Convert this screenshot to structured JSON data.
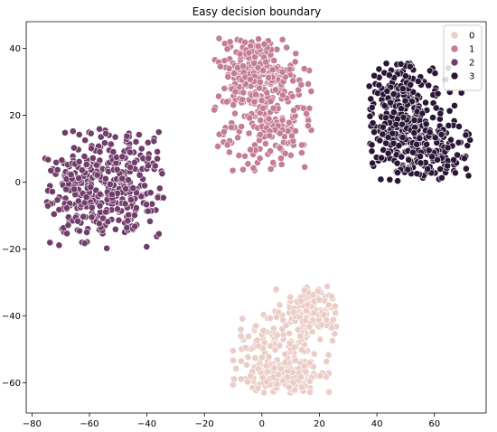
{
  "chart_data": {
    "type": "scatter",
    "title": "Easy decision boundary",
    "xlabel": "",
    "ylabel": "",
    "xlim": [
      -82,
      78
    ],
    "ylim": [
      -69,
      48
    ],
    "xticks": [
      -80,
      -60,
      -40,
      -20,
      0,
      20,
      40,
      60
    ],
    "yticks": [
      -60,
      -40,
      -20,
      0,
      20,
      40
    ],
    "grid": false,
    "legend": "top-right",
    "series": [
      {
        "name": "0",
        "color": "#ebcdc7",
        "clusters": [
          {
            "center": [
              5,
              -50
            ],
            "spread": [
              10,
              7
            ]
          },
          {
            "center": [
              17,
              -39
            ],
            "spread": [
              5,
              4
            ]
          },
          {
            "center": [
              8,
              -58
            ],
            "spread": [
              7,
              3
            ]
          }
        ],
        "x_range": [
          -12,
          27
        ],
        "y_range": [
          -63,
          -30
        ],
        "count": 420
      },
      {
        "name": "1",
        "color": "#c47d96",
        "clusters": [
          {
            "center": [
              -2,
              34
            ],
            "spread": [
              7,
              5
            ]
          },
          {
            "center": [
              3,
              20
            ],
            "spread": [
              10,
              9
            ]
          }
        ],
        "x_range": [
          -17,
          18
        ],
        "y_range": [
          3,
          43
        ],
        "count": 420
      },
      {
        "name": "2",
        "color": "#713d6a",
        "clusters": [
          {
            "center": [
              -62,
              -3
            ],
            "spread": [
              8,
              8
            ]
          },
          {
            "center": [
              -48,
              0
            ],
            "spread": [
              8,
              9
            ]
          }
        ],
        "x_range": [
          -76,
          -34
        ],
        "y_range": [
          -20,
          16
        ],
        "count": 420
      },
      {
        "name": "3",
        "color": "#2a1737",
        "clusters": [
          {
            "center": [
              48,
              24
            ],
            "spread": [
              7,
              7
            ]
          },
          {
            "center": [
              55,
              10
            ],
            "spread": [
              10,
              7
            ]
          }
        ],
        "x_range": [
          37,
          73
        ],
        "y_range": [
          0,
          36
        ],
        "count": 420
      }
    ]
  }
}
